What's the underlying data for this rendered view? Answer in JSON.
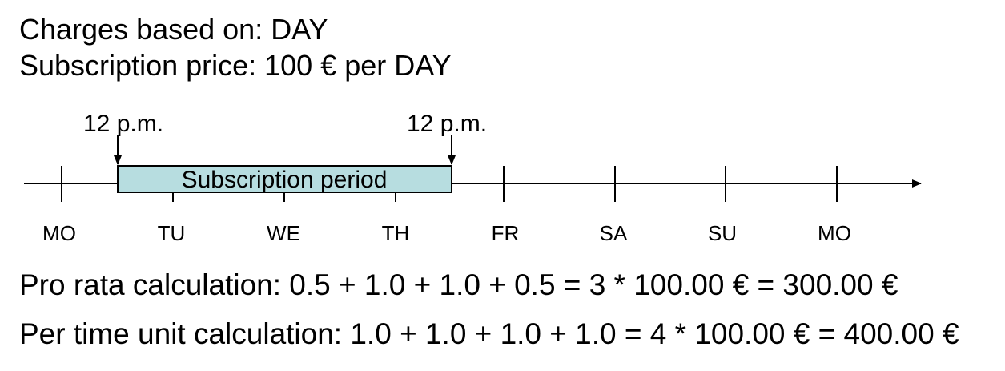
{
  "header": {
    "charges_line": "Charges based on: DAY",
    "price_line": "Subscription price: 100 € per DAY"
  },
  "timeline": {
    "days": [
      "MO",
      "TU",
      "WE",
      "TH",
      "FR",
      "SA",
      "SU",
      "MO"
    ],
    "period_label": "Subscription period",
    "start_label": "12 p.m.",
    "end_label": "12 p.m.",
    "period_fill": "#b7dde0"
  },
  "calculations": {
    "pro_rata": "Pro rata calculation: 0.5 + 1.0 + 1.0 + 0.5  =  3 * 100.00 € = 300.00 €",
    "per_time_unit": "Per time unit calculation: 1.0 + 1.0 + 1.0 + 1.0  =  4 * 100.00 € = 400.00 €"
  }
}
